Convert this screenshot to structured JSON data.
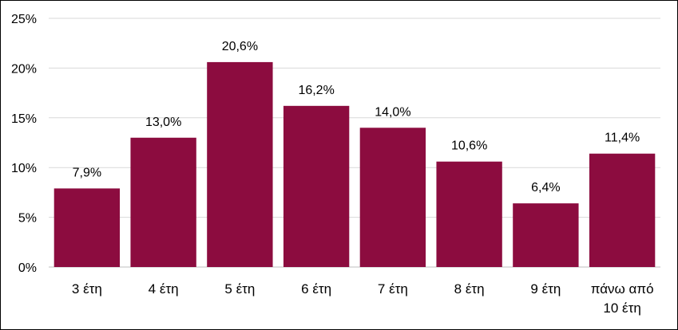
{
  "chart_data": {
    "type": "bar",
    "categories": [
      "3 έτη",
      "4 έτη",
      "5 έτη",
      "6 έτη",
      "7 έτη",
      "8 έτη",
      "9 έτη",
      [
        "πάνω από",
        "10 έτη"
      ]
    ],
    "values": [
      7.9,
      13.0,
      20.6,
      16.2,
      14.0,
      10.6,
      6.4,
      11.4
    ],
    "data_labels": [
      "7,9%",
      "13,0%",
      "20,6%",
      "16,2%",
      "14,0%",
      "10,6%",
      "6,4%",
      "11,4%"
    ],
    "y_ticks": [
      "0%",
      "5%",
      "10%",
      "15%",
      "20%",
      "25%"
    ],
    "ylim": [
      0,
      25
    ],
    "grid": true,
    "legend": false,
    "colors": {
      "bar": "#8C0C3F",
      "grid": "#D9D9D9",
      "axis": "#BFBFBF"
    }
  }
}
